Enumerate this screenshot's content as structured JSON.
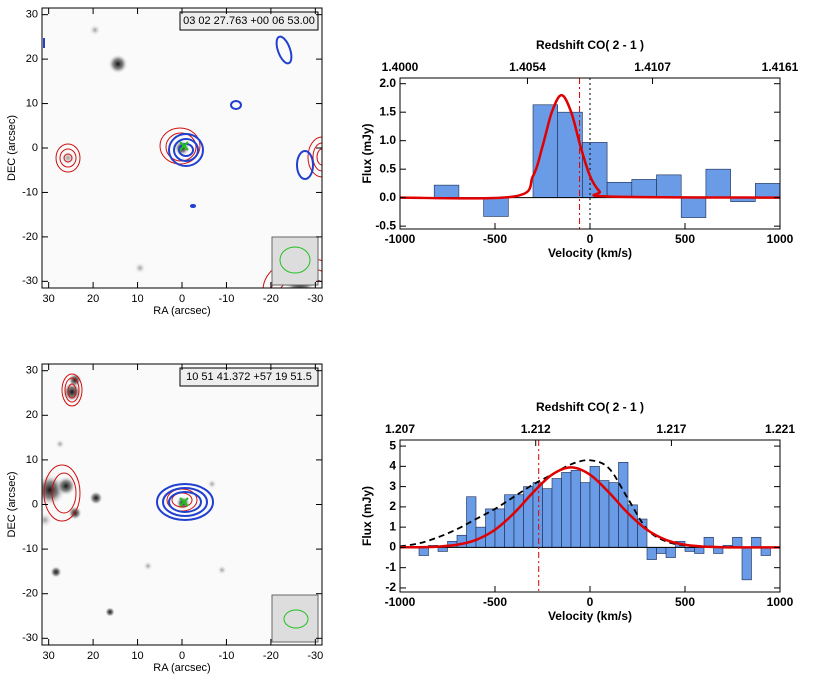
{
  "chart_data": [
    {
      "type": "image",
      "label": "03 02 27.763 +00 06 53.00",
      "xlabel": "RA (arcsec)",
      "ylabel": "DEC (arcsec)",
      "xlim": [
        31.5,
        -31.5
      ],
      "ylim": [
        -31.5,
        31.5
      ],
      "xticks": [
        30,
        20,
        10,
        0,
        -10,
        -20,
        -30
      ],
      "yticks": [
        -30,
        -20,
        -10,
        0,
        10,
        20,
        30
      ]
    },
    {
      "type": "histogram",
      "title": "Redshift CO( 2 - 1 )",
      "xlabel": "Velocity (km/s)",
      "ylabel": "Flux (mJy)",
      "xlim": [
        -1000,
        1000
      ],
      "ylim": [
        -0.55,
        2.1
      ],
      "xticks": [
        -1000,
        -500,
        0,
        500,
        1000
      ],
      "yticks": [
        -0.5,
        {
          "value": 0,
          "label": "0.0"
        },
        0.5,
        {
          "value": 1,
          "label": "1.0"
        },
        1.5,
        {
          "value": 2,
          "label": "2.0"
        }
      ],
      "x2lim": [
        1.4,
        1.4161
      ],
      "x2ticks": [
        {
          "value": 1.4,
          "label": "1.4000"
        },
        1.4054,
        1.4107,
        1.4161
      ],
      "bins": [
        -820,
        -690,
        -560,
        -430,
        -300,
        -170,
        -40,
        90,
        220,
        350,
        480,
        610,
        740,
        870,
        1000
      ],
      "counts": [
        0.22,
        0,
        -0.33,
        0,
        1.63,
        1.5,
        0.97,
        0.27,
        0.32,
        0.4,
        -0.35,
        0.5,
        -0.07,
        0.25
      ],
      "color": "#6a9be6",
      "lines": [
        {
          "color": "#e00000",
          "style": "solid",
          "x": [
            -1000,
            -400,
            -300,
            -250,
            -200,
            -150,
            -100,
            -50,
            0,
            50,
            100,
            1000
          ],
          "values": [
            0,
            0.02,
            0.38,
            0.9,
            1.51,
            1.8,
            1.51,
            0.9,
            0.38,
            0.11,
            0.02,
            0
          ]
        }
      ],
      "vlines": [
        {
          "x": -55,
          "color": "#e00000",
          "style": "dashdot"
        },
        {
          "x": 0,
          "color": "#000000",
          "style": "dotted"
        }
      ]
    },
    {
      "type": "image",
      "label": "10 51 41.372 +57 19 51.5",
      "xlabel": "RA (arcsec)",
      "ylabel": "DEC (arcsec)",
      "xlim": [
        31.5,
        -31.5
      ],
      "ylim": [
        -31.5,
        31.5
      ],
      "xticks": [
        30,
        20,
        10,
        0,
        -10,
        -20,
        -30
      ],
      "yticks": [
        -30,
        -20,
        -10,
        0,
        10,
        20,
        30
      ]
    },
    {
      "type": "histogram",
      "title": "Redshift CO( 2 - 1 )",
      "xlabel": "Velocity (km/s)",
      "ylabel": "Flux (mJy)",
      "xlim": [
        -1000,
        1000
      ],
      "ylim": [
        -2.2,
        5.3
      ],
      "xticks": [
        -1000,
        -500,
        0,
        500,
        1000
      ],
      "yticks": [
        -2,
        -1,
        0,
        1,
        2,
        3,
        4,
        5
      ],
      "x2lim": [
        1.207,
        1.221
      ],
      "x2ticks": [
        1.207,
        1.212,
        1.217,
        1.221
      ],
      "bins": [
        -900,
        -850,
        -800,
        -750,
        -700,
        -650,
        -600,
        -550,
        -500,
        -450,
        -400,
        -350,
        -300,
        -250,
        -200,
        -150,
        -100,
        -50,
        0,
        50,
        100,
        150,
        200,
        250,
        300,
        350,
        400,
        450,
        500,
        550,
        600,
        650,
        700,
        750,
        800,
        850,
        900,
        950
      ],
      "counts": [
        -0.4,
        0.1,
        -0.2,
        0.3,
        0.6,
        2.5,
        1.0,
        1.9,
        1.9,
        2.6,
        2.6,
        3.0,
        3.2,
        2.9,
        3.4,
        3.7,
        3.8,
        3.2,
        4.0,
        3.3,
        3.2,
        4.2,
        2.1,
        1.4,
        -0.6,
        -0.3,
        -0.5,
        0.3,
        -0.2,
        -0.3,
        0.5,
        -0.3,
        0.1,
        0.5,
        -1.6,
        0.5,
        -0.4
      ],
      "color": "#6a9be6",
      "lines": [
        {
          "color": "#000000",
          "style": "dashed",
          "x": [
            -1000,
            -900,
            -800,
            -700,
            -600,
            -500,
            -400,
            -300,
            -200,
            -100,
            0,
            100,
            200,
            300,
            400,
            500,
            600,
            700,
            800,
            900,
            1000
          ],
          "values": [
            0.05,
            0.2,
            0.5,
            0.9,
            1.4,
            1.9,
            2.5,
            3.1,
            3.6,
            4.1,
            4.3,
            3.9,
            2.4,
            0.9,
            0.3,
            0.1,
            0.05,
            0.02,
            0,
            0,
            0
          ]
        },
        {
          "color": "#e00000",
          "style": "solid",
          "x": [
            -1000,
            -900,
            -800,
            -700,
            -600,
            -500,
            -400,
            -300,
            -200,
            -100,
            0,
            100,
            200,
            300,
            400,
            500,
            600,
            700,
            800,
            900,
            1000
          ],
          "values": [
            0.01,
            0.01,
            0.04,
            0.13,
            0.37,
            0.87,
            1.69,
            2.71,
            3.59,
            3.95,
            3.59,
            2.71,
            1.69,
            0.87,
            0.37,
            0.13,
            0.04,
            0.01,
            0,
            0,
            0
          ]
        }
      ],
      "vlines": [
        {
          "x": -270,
          "color": "#e00000",
          "style": "dashdot"
        }
      ]
    }
  ]
}
